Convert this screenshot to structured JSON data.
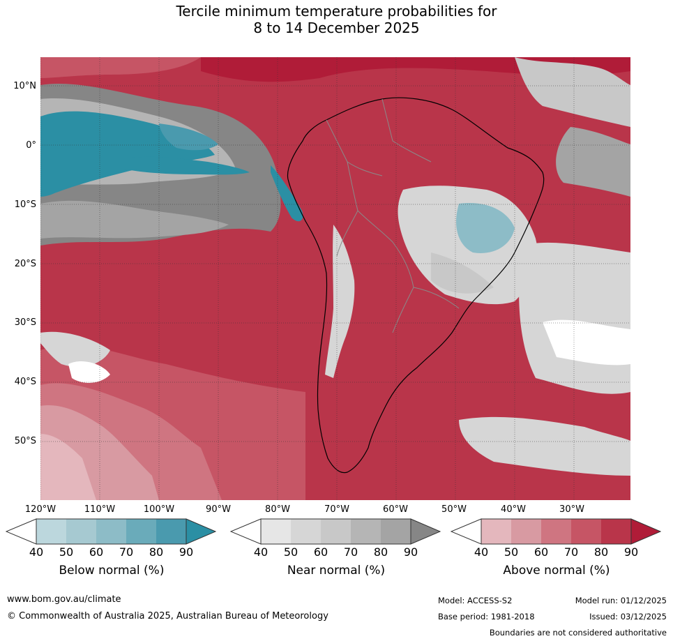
{
  "title": {
    "line1": "Tercile minimum temperature probabilities for",
    "line2": "8 to 14 December 2025"
  },
  "map": {
    "latitude_labels": [
      "10°N",
      "0°",
      "10°S",
      "20°S",
      "30°S",
      "40°S",
      "50°S"
    ],
    "longitude_labels": [
      "120°W",
      "110°W",
      "100°W",
      "90°W",
      "80°W",
      "70°W",
      "60°W",
      "50°W",
      "40°W",
      "30°W"
    ],
    "colors": {
      "below": [
        "#bcd7dd",
        "#a6c9d1",
        "#8dbcc7",
        "#6aabba",
        "#4a9aae",
        "#2b8fa4"
      ],
      "near": [
        "#e6e6e6",
        "#d6d6d6",
        "#c8c8c8",
        "#b5b5b5",
        "#a4a4a4",
        "#868686"
      ],
      "above": [
        "#e4b7bd",
        "#d89aa2",
        "#cf7581",
        "#c65565",
        "#b9354a",
        "#b01c38"
      ]
    }
  },
  "legend": [
    {
      "title": "Below normal (%)",
      "ticks": [
        "40",
        "50",
        "60",
        "70",
        "80",
        "90"
      ]
    },
    {
      "title": "Near normal (%)",
      "ticks": [
        "40",
        "50",
        "60",
        "70",
        "80",
        "90"
      ]
    },
    {
      "title": "Above normal (%)",
      "ticks": [
        "40",
        "50",
        "60",
        "70",
        "80",
        "90"
      ]
    }
  ],
  "footer": {
    "website": "www.bom.gov.au/climate",
    "copyright": "© Commonwealth of Australia 2025, Australian Bureau of Meteorology",
    "model": "Model: ACCESS-S2",
    "model_run": "Model run: 01/12/2025",
    "base_period": "Base period: 1981-2018",
    "issued": "Issued: 03/12/2025",
    "disclaimer": "Boundaries are not considered authoritative"
  }
}
